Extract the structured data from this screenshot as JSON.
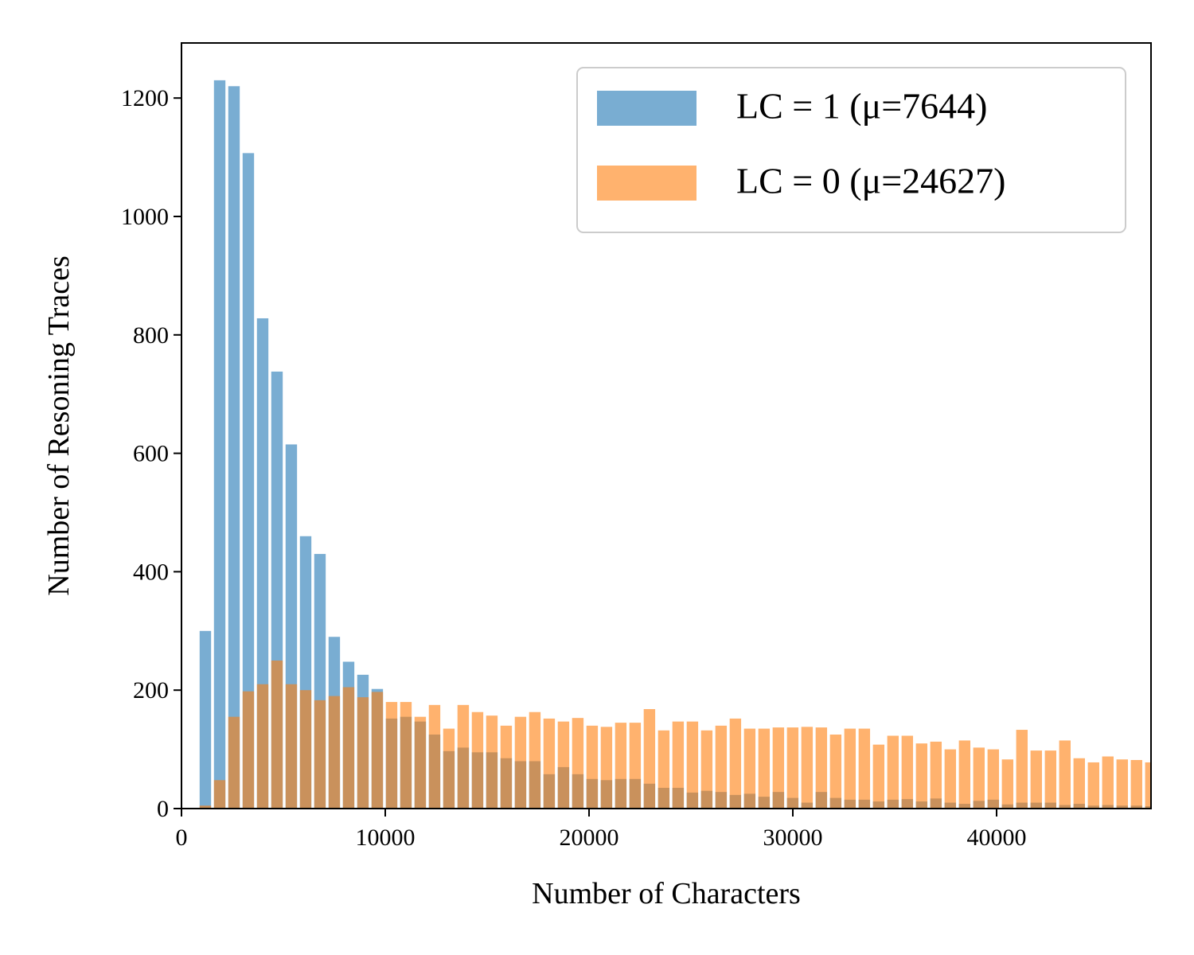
{
  "chart_data": {
    "type": "histogram",
    "xlabel": "Number of Characters",
    "ylabel": "Number of Resoning Traces",
    "bins": [
      820,
      1523,
      2226,
      2929,
      3632,
      4335,
      5038,
      5741,
      6444,
      7147,
      7850,
      8553,
      9256,
      9959,
      10662,
      11365,
      12068,
      12771,
      13474,
      14177,
      14880,
      15583,
      16286,
      16989,
      17692,
      18395,
      19098,
      19801,
      20504,
      21207,
      21910,
      22613,
      23316,
      24019,
      24722,
      25425,
      26128,
      26831,
      27534,
      28237,
      28940,
      29643,
      30346,
      31049,
      31752,
      32455,
      33158,
      33861,
      34564,
      35267,
      35970,
      36673,
      37376,
      38079,
      38782,
      39485,
      40188,
      40891,
      41594,
      42297,
      43000,
      43703,
      44406,
      45109,
      45812,
      46515,
      47218,
      47921
    ],
    "series": [
      {
        "name": "LC = 1 (μ=7644)",
        "color": "#1f77b4",
        "values": [
          300,
          1230,
          1220,
          1107,
          828,
          738,
          615,
          460,
          430,
          290,
          248,
          226,
          202,
          152,
          155,
          147,
          125,
          97,
          103,
          95,
          95,
          85,
          80,
          80,
          58,
          70,
          58,
          50,
          48,
          50,
          50,
          42,
          35,
          35,
          27,
          30,
          28,
          23,
          25,
          20,
          28,
          18,
          10,
          28,
          18,
          15,
          15,
          12,
          15,
          16,
          12,
          17,
          10,
          8,
          13,
          15,
          7,
          10,
          10,
          10,
          6,
          8,
          5,
          6,
          5,
          5,
          4
        ]
      },
      {
        "name": "LC = 0 (μ=24627)",
        "color": "#ff7f0e",
        "values": [
          5,
          48,
          155,
          198,
          210,
          250,
          210,
          200,
          183,
          190,
          205,
          188,
          197,
          180,
          180,
          155,
          175,
          135,
          175,
          163,
          157,
          140,
          155,
          163,
          152,
          147,
          153,
          140,
          138,
          145,
          145,
          168,
          132,
          147,
          147,
          132,
          140,
          152,
          135,
          135,
          137,
          137,
          138,
          137,
          125,
          135,
          135,
          108,
          123,
          123,
          110,
          113,
          100,
          115,
          103,
          100,
          83,
          133,
          98,
          98,
          115,
          85,
          78,
          88,
          83,
          82,
          78
        ]
      }
    ],
    "xlim": [
      0,
      47578
    ],
    "ylim": [
      0,
      1293
    ],
    "xticks": [
      0,
      10000,
      20000,
      30000,
      40000
    ],
    "yticks": [
      0,
      200,
      400,
      600,
      800,
      1000,
      1200
    ],
    "legend": "upper right"
  }
}
